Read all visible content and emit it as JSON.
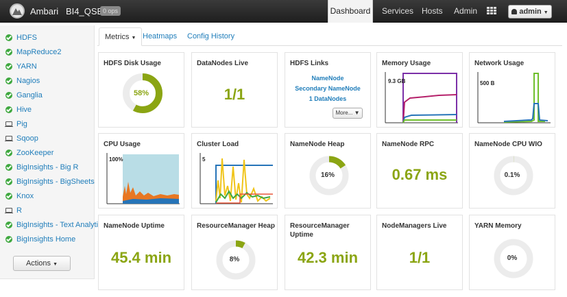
{
  "topbar": {
    "brand": "Ambari",
    "cluster_name": "BI4_QSE",
    "ops_badge": "0 ops",
    "nav": [
      "Dashboard",
      "Services",
      "Hosts",
      "Admin"
    ],
    "active_nav": "Dashboard",
    "user_label": "admin"
  },
  "sidebar": {
    "services": [
      {
        "name": "HDFS",
        "status": "ok"
      },
      {
        "name": "MapReduce2",
        "status": "ok"
      },
      {
        "name": "YARN",
        "status": "ok"
      },
      {
        "name": "Nagios",
        "status": "ok"
      },
      {
        "name": "Ganglia",
        "status": "ok"
      },
      {
        "name": "Hive",
        "status": "ok"
      },
      {
        "name": "Pig",
        "status": "client"
      },
      {
        "name": "Sqoop",
        "status": "client"
      },
      {
        "name": "ZooKeeper",
        "status": "ok"
      },
      {
        "name": "BigInsights - Big R",
        "status": "ok"
      },
      {
        "name": "BigInsights - BigSheets",
        "status": "ok"
      },
      {
        "name": "Knox",
        "status": "ok"
      },
      {
        "name": "R",
        "status": "client"
      },
      {
        "name": "BigInsights - Text Analytics",
        "status": "ok"
      },
      {
        "name": "BigInsights Home",
        "status": "ok"
      }
    ],
    "actions_label": "Actions"
  },
  "tabs": [
    "Metrics",
    "Heatmaps",
    "Config History"
  ],
  "widgets": {
    "hdfs_disk_usage": {
      "title": "HDFS Disk Usage",
      "value": "58%",
      "fraction": 0.58
    },
    "datanodes_live": {
      "title": "DataNodes Live",
      "value": "1/1"
    },
    "hdfs_links": {
      "title": "HDFS Links",
      "links": [
        "NameNode",
        "Secondary NameNode",
        "1 DataNodes"
      ],
      "more_label": "More..."
    },
    "memory_usage": {
      "title": "Memory Usage",
      "max_label": "9.3 GB"
    },
    "network_usage": {
      "title": "Network Usage",
      "max_label": "500 B"
    },
    "cpu_usage": {
      "title": "CPU Usage",
      "max_label": "100%"
    },
    "cluster_load": {
      "title": "Cluster Load",
      "max_label": "5"
    },
    "namenode_heap": {
      "title": "NameNode Heap",
      "value": "16%",
      "fraction": 0.16
    },
    "namenode_rpc": {
      "title": "NameNode RPC",
      "value": "0.67 ms"
    },
    "namenode_cpu_wio": {
      "title": "NameNode CPU WIO",
      "value": "0.1%",
      "fraction": 0.001
    },
    "namenode_uptime": {
      "title": "NameNode Uptime",
      "value": "45.4 min"
    },
    "resourcemanager_heap": {
      "title": "ResourceManager Heap",
      "value": "8%",
      "fraction": 0.08
    },
    "resourcemanager_uptime": {
      "title": "ResourceManager Uptime",
      "value": "42.3 min"
    },
    "nodemanagers_live": {
      "title": "NodeManagers Live",
      "value": "1/1"
    },
    "yarn_memory": {
      "title": "YARN Memory",
      "value": "0%",
      "fraction": 0.0
    }
  },
  "colors": {
    "accent_green": "#8ba513",
    "link_blue": "#1f7dba",
    "status_ok": "#3fa83f"
  }
}
